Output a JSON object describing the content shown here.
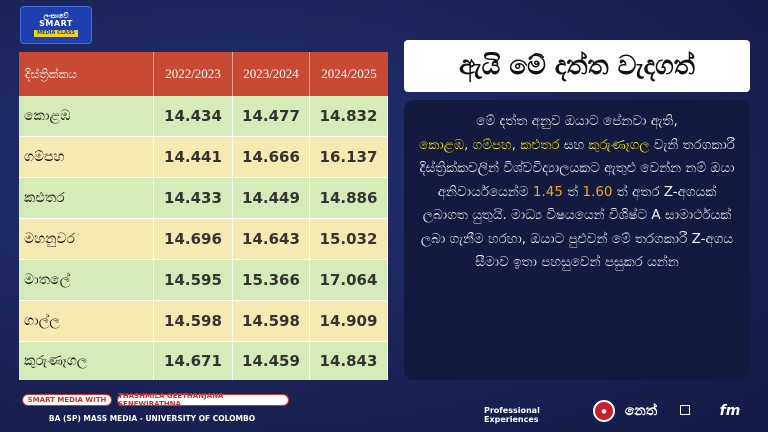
{
  "logo": {
    "line1": "ලංකාවේ",
    "line2": "SMART",
    "line3": "MEDIA CLASS"
  },
  "table": {
    "headers": [
      "දිස්ත්‍රික්කය",
      "2022/2023",
      "2023/2024",
      "2024/2025"
    ],
    "rows": [
      {
        "district": "කොළඹ",
        "v1": "14.434",
        "v2": "14.477",
        "v3": "14.832"
      },
      {
        "district": "ගම්පහ",
        "v1": "14.441",
        "v2": "14.666",
        "v3": "16.137"
      },
      {
        "district": "කළුතර",
        "v1": "14.433",
        "v2": "14.449",
        "v3": "14.886"
      },
      {
        "district": "මහනුවර",
        "v1": "14.696",
        "v2": "14.643",
        "v3": "15.032"
      },
      {
        "district": "මාතලේ",
        "v1": "14.595",
        "v2": "15.366",
        "v3": "17.064"
      },
      {
        "district": "ගාල්ල",
        "v1": "14.598",
        "v2": "14.598",
        "v3": "14.909"
      },
      {
        "district": "කුරුණෑගල",
        "v1": "14.671",
        "v2": "14.459",
        "v3": "14.843"
      }
    ]
  },
  "title": "ඇයි මේ දත්ත වැදගත්",
  "info": {
    "p1": "මේ දත්ත අනුව ඔයාට පේනවා ඇති,",
    "hl1": "කොළඹ, ගම්පහ, කළුතර",
    "and": " සහ ",
    "hl2": "කුරුණෑගල",
    "p2": "වැනි තරගකාරී දිස්ත්‍රික්කවලින් විශ්වවිද්‍යාලයකට ඇතුළු වෙන්න නම් ඔයා අනිවාර්යයෙන්ම",
    "n1": "1.45",
    "mid": " ත් ",
    "n2": "1.60",
    "p3": " ත් අතර Z-අගයක් ලබාගත යුතුයි. මාධ්‍ය විෂයයෙන් විශිෂ්ට A සාමාර්ථයක් ලබා ගැනීම හරහා, ඔයාට පුළුවන් මේ තරගකාරී Z-අගය සීමාව ඉතා පහසුවෙන් පසුකර යන්න"
  },
  "footer": {
    "tag1": "SMART MEDIA WITH",
    "tag2": "THASHMILA GEETHANJANA SENEWIRATHNA",
    "degree": "BA (SP) MASS MEDIA - UNIVERSITY OF COLOMBO",
    "pro": "Professional Experiences",
    "brand2": "නෙත්",
    "brand4": "fm"
  },
  "colors": {
    "background": "#1b2457",
    "header_red": "#c94a34",
    "row_green": "#d6ecb8",
    "row_yellow": "#f6eab2",
    "highlight_yellow": "#ffe600",
    "highlight_orange": "#f7a51c"
  }
}
